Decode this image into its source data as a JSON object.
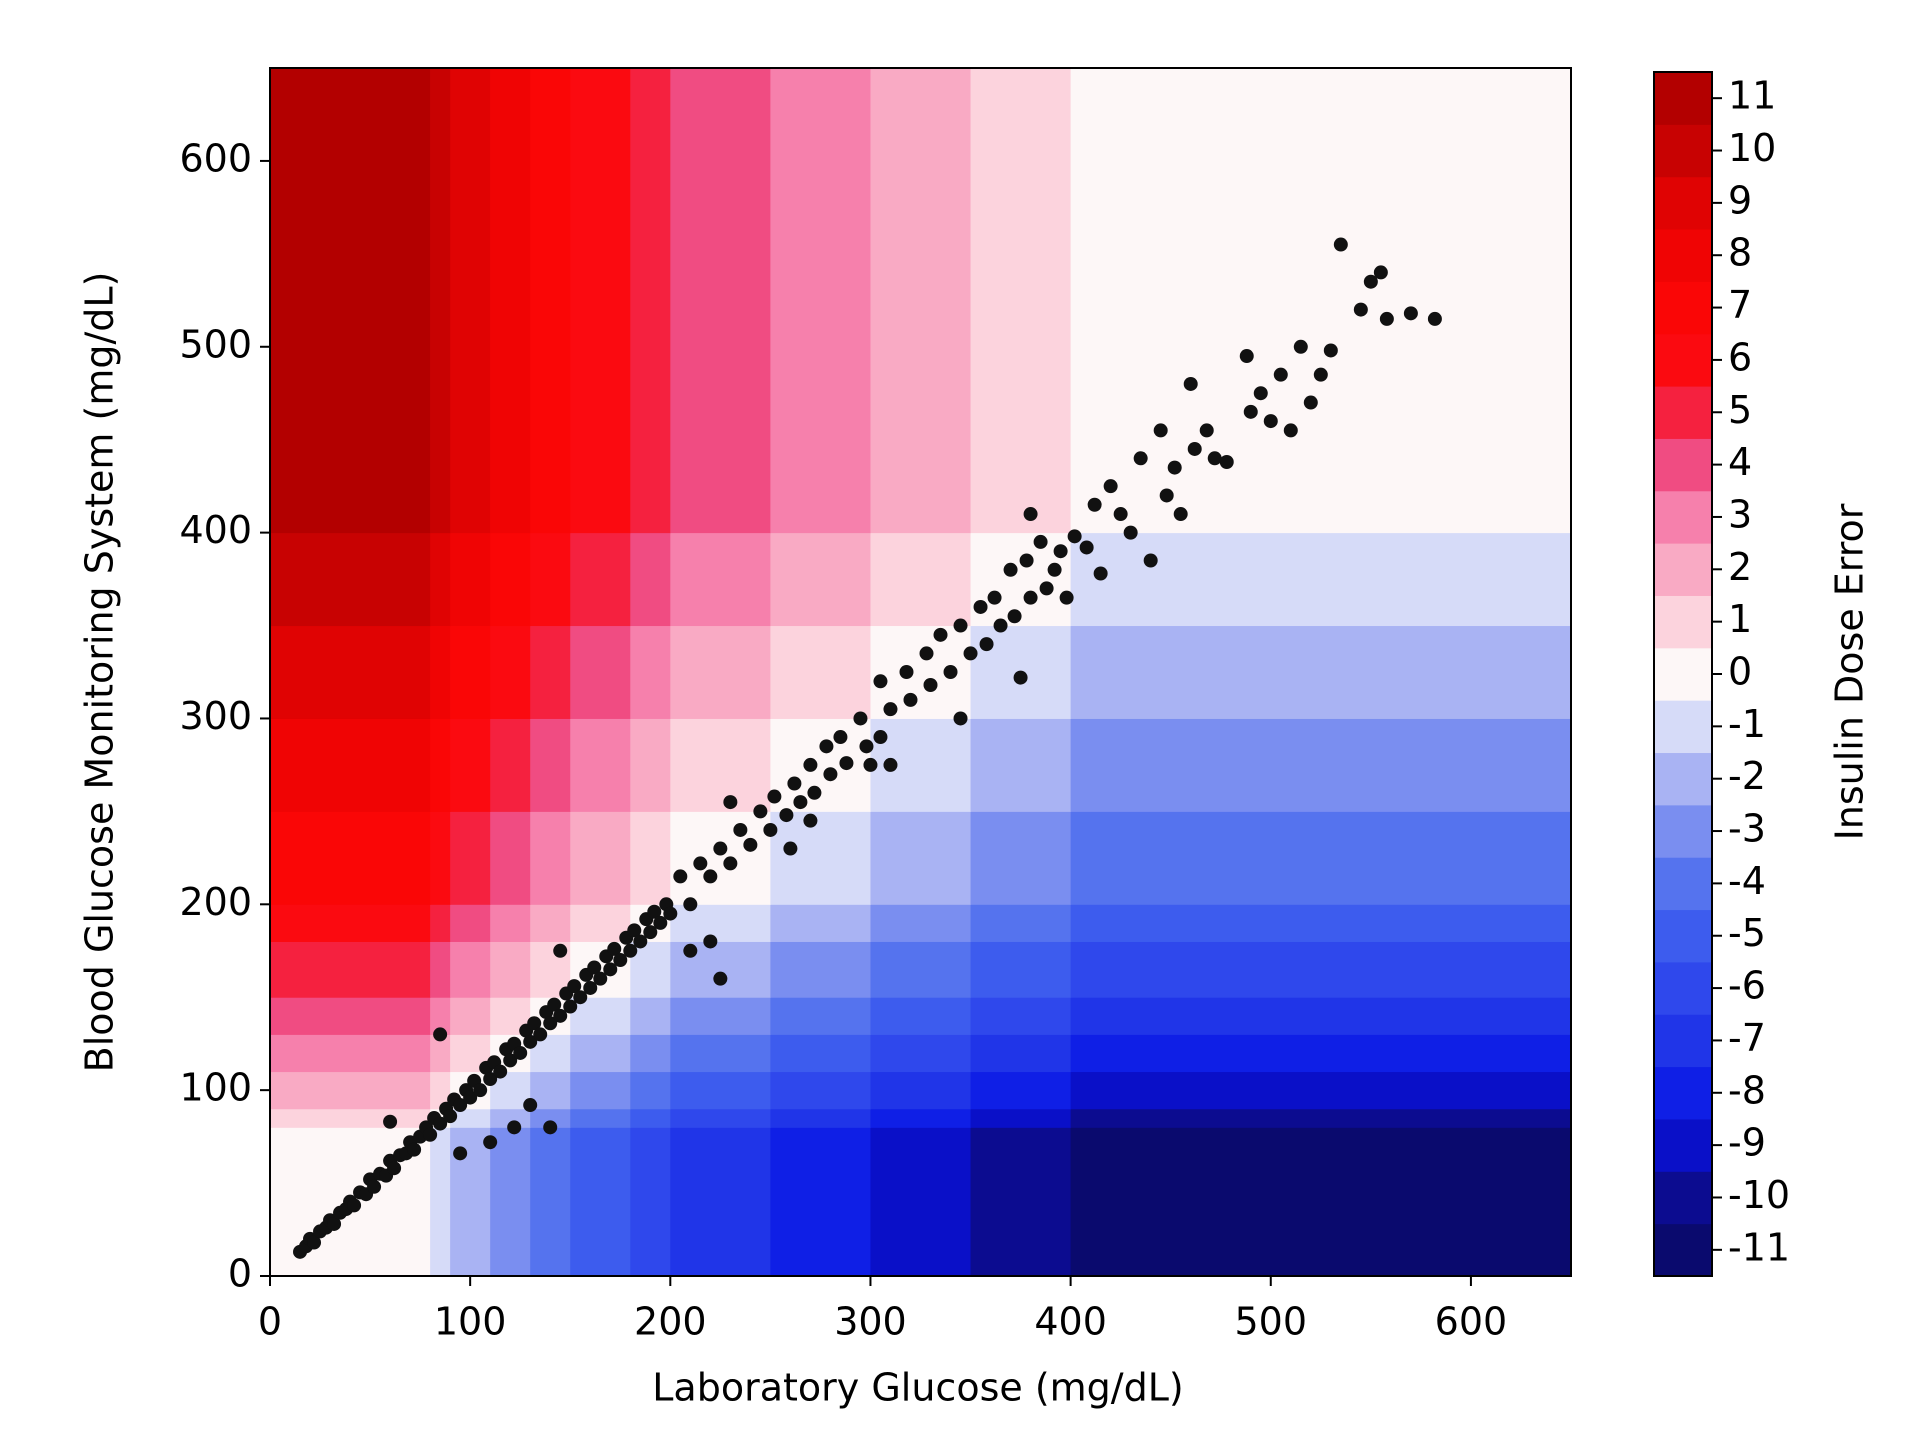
{
  "chart_data": {
    "type": "heatmap_scatter",
    "xlabel": "Laboratory Glucose (mg/dL)",
    "ylabel": "Blood Glucose Monitoring System (mg/dL)",
    "xlim": [
      0,
      650
    ],
    "ylim": [
      0,
      650
    ],
    "xticks": [
      0,
      100,
      200,
      300,
      400,
      500,
      600
    ],
    "yticks": [
      0,
      100,
      200,
      300,
      400,
      500,
      600
    ],
    "heatmap": {
      "x_edges": [
        0,
        80,
        90,
        110,
        130,
        150,
        180,
        200,
        250,
        300,
        350,
        400,
        650
      ],
      "y_edges": [
        0,
        80,
        90,
        110,
        130,
        150,
        180,
        200,
        250,
        300,
        350,
        400,
        650
      ],
      "z": [
        [
          0,
          -1,
          -2,
          -3,
          -4,
          -5,
          -6,
          -7,
          -8,
          -9,
          -10,
          -11
        ],
        [
          1,
          0,
          -1,
          -2,
          -3,
          -4,
          -5,
          -6,
          -7,
          -8,
          -9,
          -10
        ],
        [
          2,
          1,
          0,
          -1,
          -2,
          -3,
          -4,
          -5,
          -6,
          -7,
          -8,
          -9
        ],
        [
          3,
          2,
          1,
          0,
          -1,
          -2,
          -3,
          -4,
          -5,
          -6,
          -7,
          -8
        ],
        [
          4,
          3,
          2,
          1,
          0,
          -1,
          -2,
          -3,
          -4,
          -5,
          -6,
          -7
        ],
        [
          5,
          4,
          3,
          2,
          1,
          0,
          -1,
          -2,
          -3,
          -4,
          -5,
          -6
        ],
        [
          6,
          5,
          4,
          3,
          2,
          1,
          0,
          -1,
          -2,
          -3,
          -4,
          -5
        ],
        [
          7,
          6,
          5,
          4,
          3,
          2,
          1,
          0,
          -1,
          -2,
          -3,
          -4
        ],
        [
          8,
          7,
          6,
          5,
          4,
          3,
          2,
          1,
          0,
          -1,
          -2,
          -3
        ],
        [
          9,
          8,
          7,
          6,
          5,
          4,
          3,
          2,
          1,
          0,
          -1,
          -2
        ],
        [
          10,
          9,
          8,
          7,
          6,
          5,
          4,
          3,
          2,
          1,
          0,
          -1
        ],
        [
          11,
          10,
          9,
          8,
          7,
          6,
          5,
          4,
          3,
          2,
          1,
          0
        ]
      ]
    },
    "scatter": {
      "color": "#111111",
      "x": [
        15,
        18,
        20,
        22,
        25,
        28,
        30,
        32,
        35,
        38,
        40,
        42,
        45,
        48,
        50,
        52,
        55,
        58,
        60,
        62,
        65,
        68,
        70,
        72,
        75,
        78,
        80,
        82,
        85,
        88,
        90,
        92,
        95,
        98,
        100,
        85,
        95,
        60,
        102,
        105,
        108,
        110,
        112,
        115,
        118,
        120,
        122,
        125,
        128,
        130,
        132,
        135,
        138,
        140,
        142,
        145,
        148,
        150,
        152,
        155,
        158,
        160,
        162,
        165,
        168,
        170,
        172,
        175,
        178,
        180,
        182,
        185,
        188,
        190,
        192,
        195,
        198,
        200,
        130,
        140,
        122,
        110,
        145,
        210,
        220,
        225,
        205,
        210,
        215,
        220,
        225,
        230,
        235,
        240,
        245,
        250,
        252,
        258,
        262,
        265,
        270,
        272,
        278,
        280,
        285,
        288,
        295,
        298,
        230,
        260,
        270,
        300,
        305,
        310,
        305,
        310,
        318,
        320,
        328,
        330,
        335,
        340,
        345,
        350,
        355,
        358,
        362,
        365,
        370,
        372,
        378,
        380,
        385,
        388,
        392,
        395,
        380,
        345,
        375,
        398,
        402,
        408,
        412,
        415,
        420,
        425,
        430,
        435,
        440,
        445,
        448,
        452,
        455,
        460,
        462,
        468,
        472,
        478,
        488,
        490,
        495,
        500,
        505,
        510,
        515,
        520,
        525,
        530,
        535,
        545,
        550,
        555,
        558,
        570,
        582
      ],
      "y": [
        13,
        16,
        20,
        18,
        24,
        26,
        30,
        28,
        34,
        36,
        40,
        38,
        45,
        44,
        52,
        48,
        55,
        54,
        62,
        58,
        65,
        66,
        72,
        68,
        75,
        80,
        76,
        85,
        82,
        90,
        86,
        95,
        92,
        100,
        96,
        130,
        66,
        83,
        105,
        100,
        112,
        106,
        115,
        110,
        122,
        116,
        125,
        120,
        132,
        126,
        136,
        130,
        142,
        136,
        146,
        140,
        152,
        145,
        156,
        150,
        162,
        155,
        166,
        160,
        172,
        165,
        176,
        170,
        182,
        175,
        186,
        180,
        192,
        185,
        196,
        190,
        200,
        195,
        92,
        80,
        80,
        72,
        175,
        175,
        180,
        160,
        215,
        200,
        222,
        215,
        230,
        222,
        240,
        232,
        250,
        240,
        258,
        248,
        265,
        255,
        275,
        260,
        285,
        270,
        290,
        276,
        300,
        285,
        255,
        230,
        245,
        275,
        290,
        275,
        320,
        305,
        325,
        310,
        335,
        318,
        345,
        325,
        350,
        335,
        360,
        340,
        365,
        350,
        380,
        355,
        385,
        365,
        395,
        370,
        380,
        390,
        410,
        300,
        322,
        365,
        398,
        392,
        415,
        378,
        425,
        410,
        400,
        440,
        385,
        455,
        420,
        435,
        410,
        480,
        445,
        455,
        440,
        438,
        495,
        465,
        475,
        460,
        485,
        455,
        500,
        470,
        485,
        498,
        555,
        520,
        535,
        540,
        515,
        518,
        515
      ]
    },
    "colorbar": {
      "label": "Insulin Dose Error",
      "lim": [
        -11.5,
        11.5
      ],
      "ticks": [
        -11,
        -10,
        -9,
        -8,
        -7,
        -6,
        -5,
        -4,
        -3,
        -2,
        -1,
        0,
        1,
        2,
        3,
        4,
        5,
        6,
        7,
        8,
        9,
        10,
        11
      ],
      "colors": [
        "#0a0a6e",
        "#0c0c90",
        "#0a10c8",
        "#0f1fe6",
        "#2035e8",
        "#2f48ec",
        "#3d5cee",
        "#5573ee",
        "#7a8ef0",
        "#a9b3f3",
        "#d6dbf8",
        "#fdf7f7",
        "#fcd3dd",
        "#f9aac4",
        "#f680ac",
        "#f04c82",
        "#f5213f",
        "#fb0a10",
        "#fa0606",
        "#f00404",
        "#e00303",
        "#c80202",
        "#b30000"
      ]
    }
  }
}
